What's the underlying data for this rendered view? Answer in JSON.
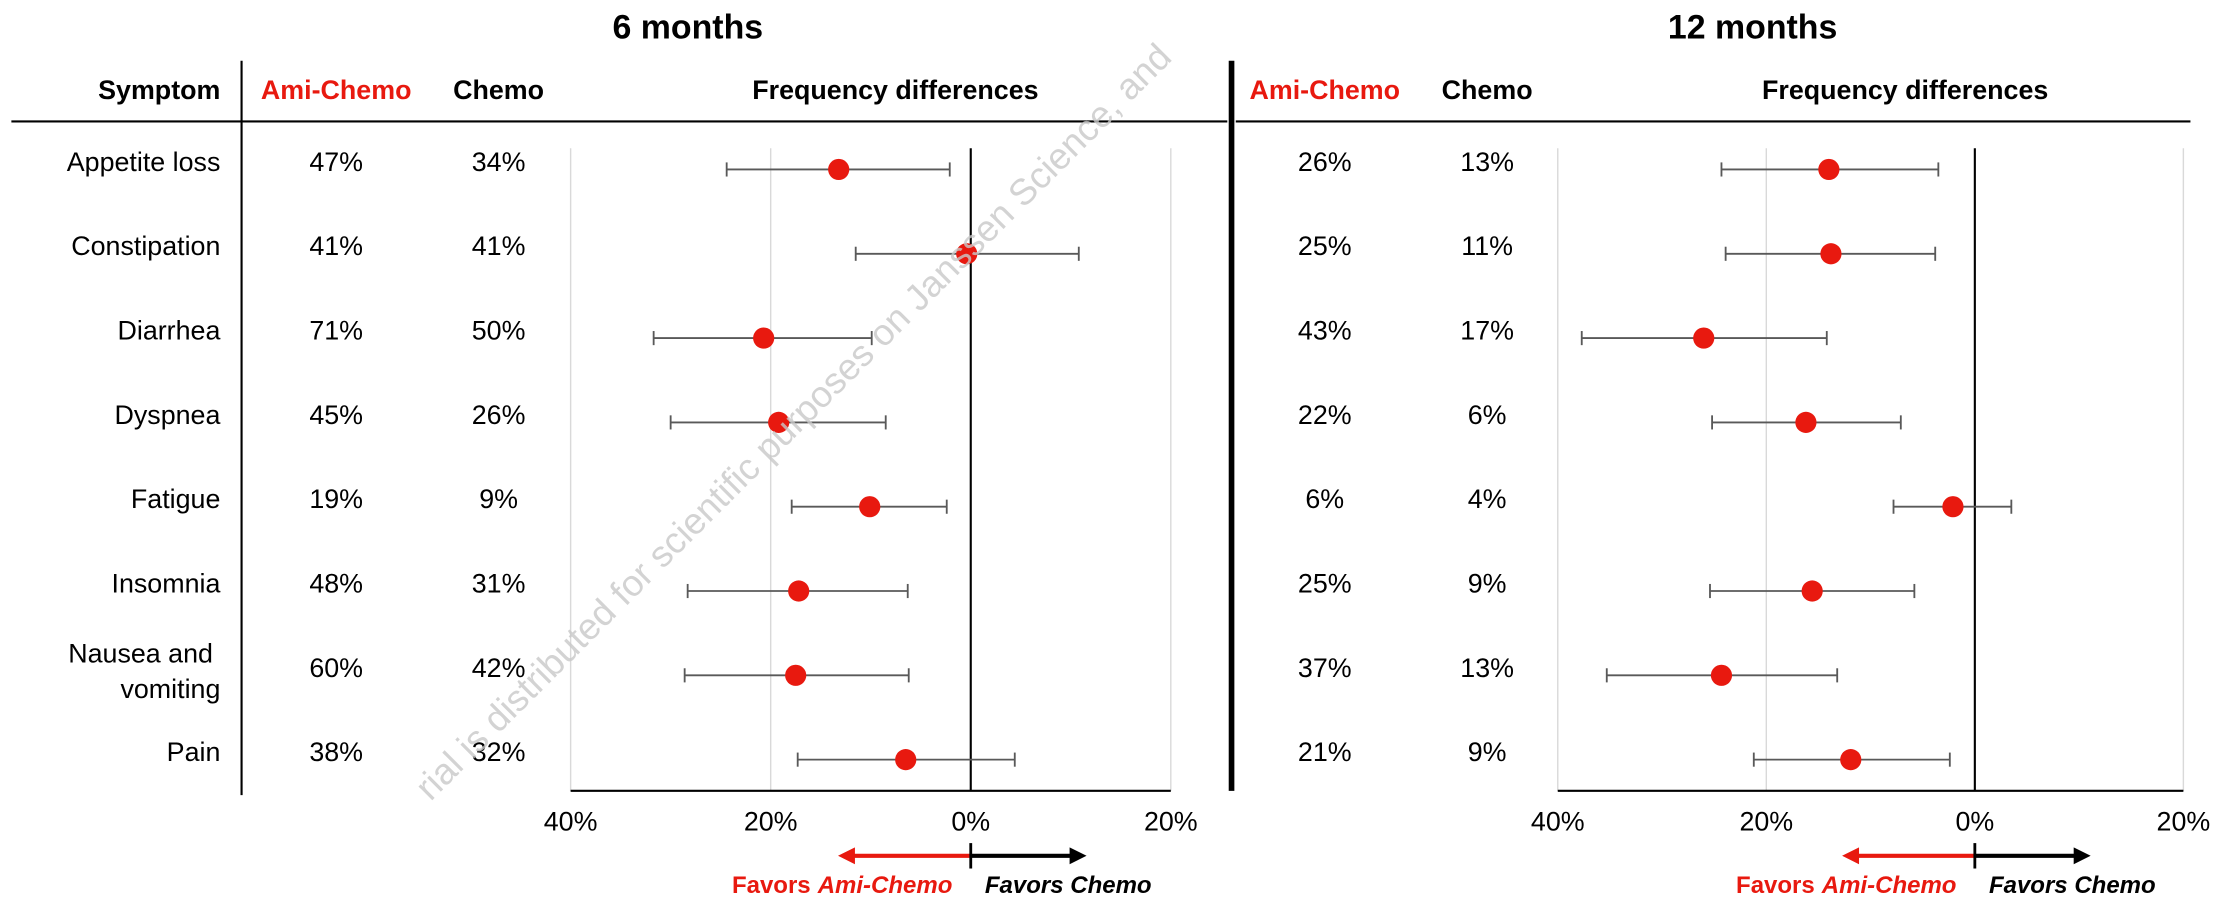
{
  "chart_data": [
    {
      "type": "forest",
      "title": "6 months",
      "row_header": "Symptom",
      "categories": [
        "Appetite loss",
        "Constipation",
        "Diarrhea",
        "Dyspnea",
        "Fatigue",
        "Insomnia",
        "Nausea and vomiting",
        "Pain"
      ],
      "columns": [
        {
          "name": "Ami-Chemo",
          "color": "#e8190f",
          "values": [
            47,
            41,
            71,
            45,
            19,
            48,
            60,
            38
          ],
          "value_labels": [
            "47%",
            "41%",
            "71%",
            "45%",
            "19%",
            "48%",
            "60%",
            "38%"
          ]
        },
        {
          "name": "Chemo",
          "color": "#000000",
          "values": [
            34,
            41,
            50,
            26,
            9,
            31,
            42,
            32
          ],
          "value_labels": [
            "34%",
            "41%",
            "50%",
            "26%",
            "9%",
            "31%",
            "42%",
            "32%"
          ]
        }
      ],
      "differences": {
        "name": "Frequency differences",
        "color": "#e8190f",
        "values": [
          -13.2,
          -0.4,
          -20.7,
          -19.2,
          -10.1,
          -17.2,
          -17.5,
          -6.5
        ],
        "lower": [
          -24.4,
          -11.5,
          -31.7,
          -30,
          -17.9,
          -28.3,
          -28.6,
          -17.3
        ],
        "upper": [
          -2.1,
          10.8,
          -9.9,
          -8.5,
          -2.4,
          -6.3,
          -6.2,
          4.4
        ]
      },
      "xlim": [
        -40,
        20
      ],
      "xticks": [
        {
          "value": -40,
          "label": "40%"
        },
        {
          "value": -20,
          "label": "20%"
        },
        {
          "value": 0,
          "label": "0%"
        },
        {
          "value": 20,
          "label": "20%"
        }
      ],
      "grid": true,
      "annotations": {
        "left_prefix": "Favors",
        "left_emph": "Ami-Chemo",
        "right": "Favors Chemo"
      }
    },
    {
      "type": "forest",
      "title": "12 months",
      "columns": [
        {
          "name": "Ami-Chemo",
          "color": "#e8190f",
          "values": [
            26,
            25,
            43,
            22,
            6,
            25,
            37,
            21
          ],
          "value_labels": [
            "26%",
            "25%",
            "43%",
            "22%",
            "6%",
            "25%",
            "37%",
            "21%"
          ]
        },
        {
          "name": "Chemo",
          "color": "#000000",
          "values": [
            13,
            11,
            17,
            6,
            4,
            9,
            13,
            9
          ],
          "value_labels": [
            "13%",
            "11%",
            "17%",
            "6%",
            "4%",
            "9%",
            "13%",
            "9%"
          ]
        }
      ],
      "differences": {
        "name": "Frequency differences",
        "color": "#e8190f",
        "values": [
          -14,
          -13.8,
          -26,
          -16.2,
          -2.1,
          -15.6,
          -24.3,
          -11.9
        ],
        "lower": [
          -24.3,
          -23.9,
          -37.7,
          -25.2,
          -7.8,
          -25.4,
          -35.3,
          -21.2
        ],
        "upper": [
          -3.5,
          -3.8,
          -14.2,
          -7.1,
          3.5,
          -5.8,
          -13.2,
          -2.4
        ]
      },
      "xlim": [
        -40,
        20
      ],
      "xticks": [
        {
          "value": -40,
          "label": "40%"
        },
        {
          "value": -20,
          "label": "20%"
        },
        {
          "value": 0,
          "label": "0%"
        },
        {
          "value": 20,
          "label": "20%"
        }
      ],
      "grid": true,
      "annotations": {
        "left_prefix": "Favors",
        "left_emph": "Ami-Chemo",
        "right": "Favors Chemo"
      }
    }
  ],
  "watermark": "rial is distributed for scientific purposes on Janssen Science, and"
}
